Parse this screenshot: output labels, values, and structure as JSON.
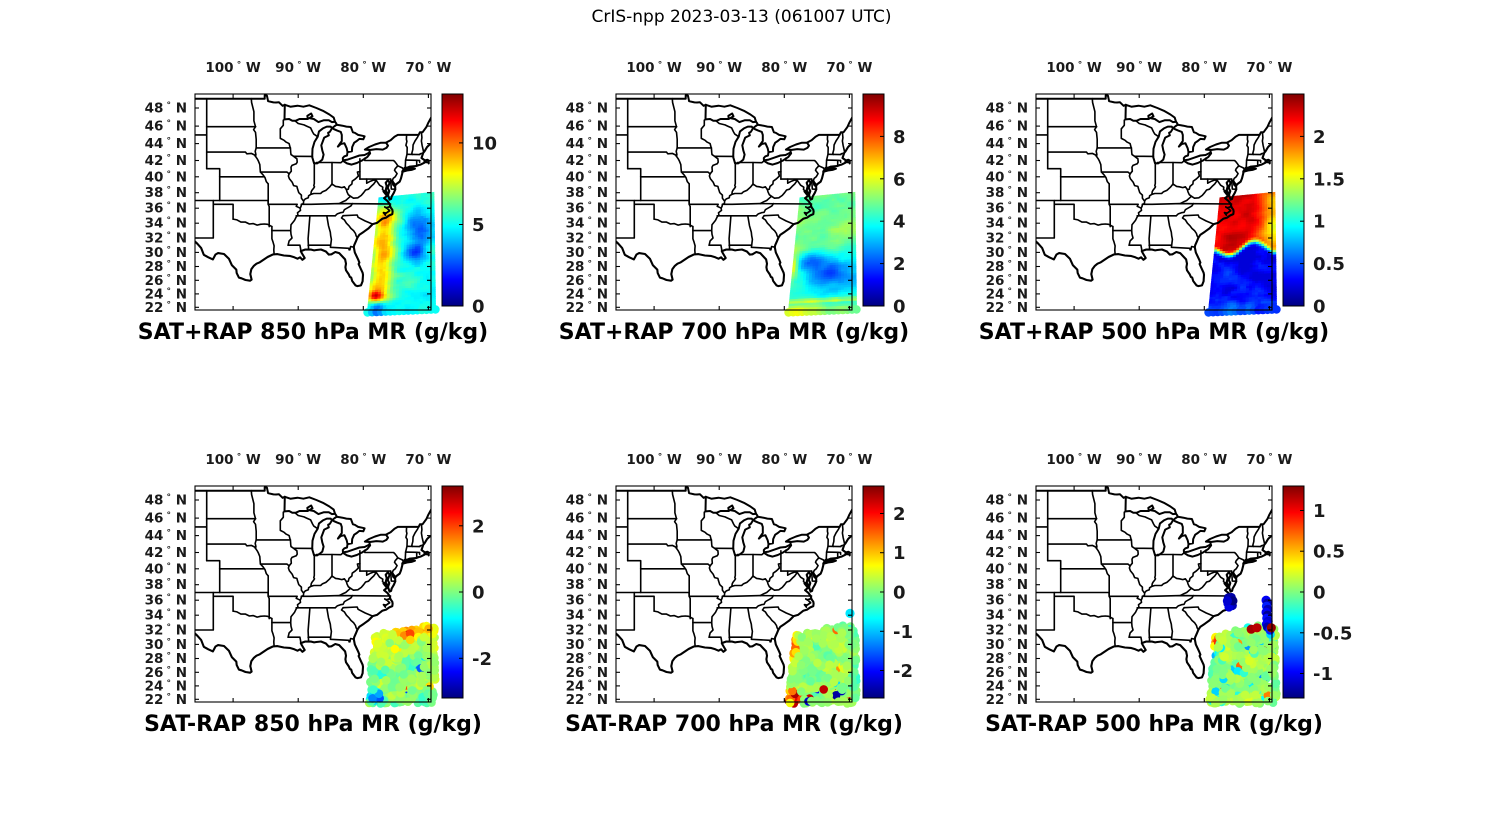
{
  "figure_title": "CrIS-npp 2023-03-13 (061007 UTC)",
  "satellite": "CrIS-npp",
  "date": "2023-03-13",
  "time_utc": "061007",
  "axes": {
    "lon_tick_labels": [
      "100",
      "90",
      "80",
      "70"
    ],
    "lon_tick_values": [
      -100,
      -90,
      -80,
      -70
    ],
    "lon_unit": "W",
    "lat_tick_labels": [
      "48",
      "46",
      "44",
      "42",
      "40",
      "38",
      "36",
      "34",
      "32",
      "30",
      "28",
      "26",
      "24",
      "22"
    ],
    "lat_tick_values": [
      48,
      46,
      44,
      42,
      40,
      38,
      36,
      34,
      32,
      30,
      28,
      26,
      24,
      22
    ],
    "lat_unit": "N"
  },
  "chart_data": {
    "type": "heatmap",
    "projection": "mercator",
    "map_extent": {
      "lon": [
        -105.85,
        -69.6
      ],
      "lat": [
        21.6,
        49.5
      ]
    },
    "swath_extent": {
      "lon": [
        -79.35,
        -68.9
      ],
      "lat": [
        21.45,
        38.05
      ]
    },
    "colormap": "jet",
    "panels": [
      {
        "title": "SAT+RAP 850 hPa MR (g/kg)",
        "row": 0,
        "col": 0,
        "style": "swath",
        "colorbar": {
          "tick_labels": [
            "0",
            "5",
            "10"
          ],
          "tick_values": [
            0,
            5,
            10
          ],
          "range": [
            0,
            13
          ]
        },
        "pattern": "orange-red band along west edge lat 24-36, green center, blue patches east side, red spot near 23.5N 78.5W",
        "outliers": []
      },
      {
        "title": "SAT+RAP 700 hPa MR (g/kg)",
        "row": 0,
        "col": 1,
        "style": "swath",
        "colorbar": {
          "tick_labels": [
            "0",
            "2",
            "4",
            "6",
            "8"
          ],
          "tick_values": [
            0,
            2,
            4,
            6,
            8
          ],
          "range": [
            0,
            10
          ]
        },
        "pattern": "yellow-green north half, large dark blue minimum lat 24-28, orange streaks along south rows",
        "outliers": []
      },
      {
        "title": "SAT+RAP 500 hPa MR (g/kg)",
        "row": 0,
        "col": 2,
        "style": "swath",
        "colorbar": {
          "tick_labels": [
            "0",
            "0.5",
            "1",
            "1.5",
            "2"
          ],
          "tick_values": [
            0,
            0.5,
            1,
            1.5,
            2
          ],
          "range": [
            0,
            2.5
          ]
        },
        "pattern": "dark red maximum north of 31N, cyan along northeast edge, deep blue south of 30N",
        "outliers": []
      },
      {
        "title": "SAT-RAP 850 hPa MR (g/kg)",
        "row": 1,
        "col": 0,
        "style": "dots",
        "colorbar": {
          "tick_labels": [
            "-2",
            "0",
            "2"
          ],
          "tick_values": [
            -2,
            0,
            2
          ],
          "range": [
            -3.2,
            3.2
          ]
        },
        "pattern": "mostly near-zero green, orange band along north boundary, dark blue cluster near 22.5N 77.5W",
        "outliers": []
      },
      {
        "title": "SAT-RAP 700 hPa MR (g/kg)",
        "row": 1,
        "col": 1,
        "style": "dots",
        "colorbar": {
          "tick_labels": [
            "-2",
            "-1",
            "0",
            "1",
            "2"
          ],
          "tick_values": [
            -2,
            -1,
            0,
            1,
            2
          ],
          "range": [
            -2.7,
            2.7
          ]
        },
        "pattern": "near-zero green-cyan, red cluster near 22.5N 78W, red dots along south rows",
        "outliers": [
          [
            -69.9,
            34.25,
            -0.8
          ]
        ]
      },
      {
        "title": "SAT-RAP 500 hPa MR (g/kg)",
        "row": 1,
        "col": 2,
        "style": "dots",
        "colorbar": {
          "tick_labels": [
            "-1",
            "-0.5",
            "0",
            "0.5",
            "1"
          ],
          "tick_values": [
            -1,
            -0.5,
            0,
            0.5,
            1
          ],
          "range": [
            -1.3,
            1.3
          ]
        },
        "pattern": "uniform light green near zero, dark blue clusters along NC coast 35-36.5N and near 70.4W 32-36N",
        "outliers": [
          [
            -76.3,
            36.3,
            -1.2
          ],
          [
            -76.1,
            36.0,
            -1.1
          ],
          [
            -75.9,
            35.8,
            -1.25
          ],
          [
            -76.35,
            35.6,
            -1.0
          ],
          [
            -76.0,
            35.4,
            -1.2
          ],
          [
            -75.7,
            35.3,
            -1.15
          ],
          [
            -76.2,
            35.1,
            -1.05
          ],
          [
            -75.85,
            36.35,
            -1.2
          ],
          [
            -75.6,
            35.9,
            -1.3
          ],
          [
            -76.45,
            35.9,
            -1.1
          ],
          [
            -70.5,
            36.0,
            -1.0
          ],
          [
            -70.3,
            35.6,
            -1.2
          ],
          [
            -70.45,
            35.2,
            -0.9
          ],
          [
            -70.25,
            34.8,
            -1.15
          ],
          [
            -70.5,
            34.4,
            -1.0
          ],
          [
            -70.3,
            34.0,
            -1.25
          ],
          [
            -70.4,
            33.6,
            -0.95
          ],
          [
            -70.2,
            33.2,
            -1.1
          ],
          [
            -70.45,
            32.8,
            -1.0
          ],
          [
            -70.3,
            32.4,
            -1.2
          ],
          [
            -69.9,
            32.0,
            -0.9
          ],
          [
            -69.7,
            32.3,
            1.25
          ],
          [
            -72.8,
            32.1,
            1.2
          ],
          [
            -71.9,
            32.3,
            1.15
          ]
        ]
      }
    ]
  },
  "colors": {
    "background": "#ffffff",
    "map_line": "#000000",
    "tick_text": "#1a1a1a",
    "title_text": "#000000",
    "jet_stops": [
      "#000080",
      "#0000ff",
      "#00ffff",
      "#ffff00",
      "#ff0000",
      "#800000"
    ]
  }
}
